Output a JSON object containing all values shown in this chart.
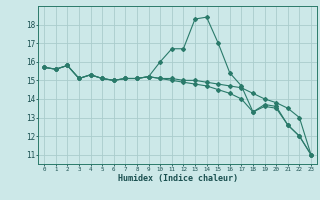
{
  "xlabel": "Humidex (Indice chaleur)",
  "ylabel": "",
  "background_color": "#cce8e8",
  "grid_color": "#aacccc",
  "line_color": "#2a7a6a",
  "xlim": [
    -0.5,
    23.5
  ],
  "ylim": [
    10.5,
    19.0
  ],
  "yticks": [
    11,
    12,
    13,
    14,
    15,
    16,
    17,
    18
  ],
  "xticks": [
    0,
    1,
    2,
    3,
    4,
    5,
    6,
    7,
    8,
    9,
    10,
    11,
    12,
    13,
    14,
    15,
    16,
    17,
    18,
    19,
    20,
    21,
    22,
    23
  ],
  "line1_x": [
    0,
    1,
    2,
    3,
    4,
    5,
    6,
    7,
    8,
    9,
    10,
    11,
    12,
    13,
    14,
    15,
    16,
    17,
    18,
    19,
    20,
    21,
    22,
    23
  ],
  "line1_y": [
    15.7,
    15.6,
    15.8,
    15.1,
    15.3,
    15.1,
    15.0,
    15.1,
    15.1,
    15.2,
    16.0,
    16.7,
    16.7,
    18.3,
    18.4,
    17.0,
    15.4,
    14.7,
    13.3,
    13.6,
    13.5,
    12.6,
    12.0,
    11.0
  ],
  "line2_x": [
    0,
    1,
    2,
    3,
    4,
    5,
    6,
    7,
    8,
    9,
    10,
    11,
    12,
    13,
    14,
    15,
    16,
    17,
    18,
    19,
    20,
    21,
    22,
    23
  ],
  "line2_y": [
    15.7,
    15.6,
    15.8,
    15.1,
    15.3,
    15.1,
    15.0,
    15.1,
    15.1,
    15.2,
    15.1,
    15.1,
    15.0,
    15.0,
    14.9,
    14.8,
    14.7,
    14.6,
    14.3,
    14.0,
    13.8,
    13.5,
    13.0,
    11.0
  ],
  "line3_x": [
    0,
    1,
    2,
    3,
    4,
    5,
    6,
    7,
    8,
    9,
    10,
    11,
    12,
    13,
    14,
    15,
    16,
    17,
    18,
    19,
    20,
    21,
    22,
    23
  ],
  "line3_y": [
    15.7,
    15.6,
    15.8,
    15.1,
    15.3,
    15.1,
    15.0,
    15.1,
    15.1,
    15.2,
    15.1,
    15.0,
    14.9,
    14.8,
    14.7,
    14.5,
    14.3,
    14.0,
    13.3,
    13.7,
    13.6,
    12.6,
    12.0,
    11.0
  ]
}
